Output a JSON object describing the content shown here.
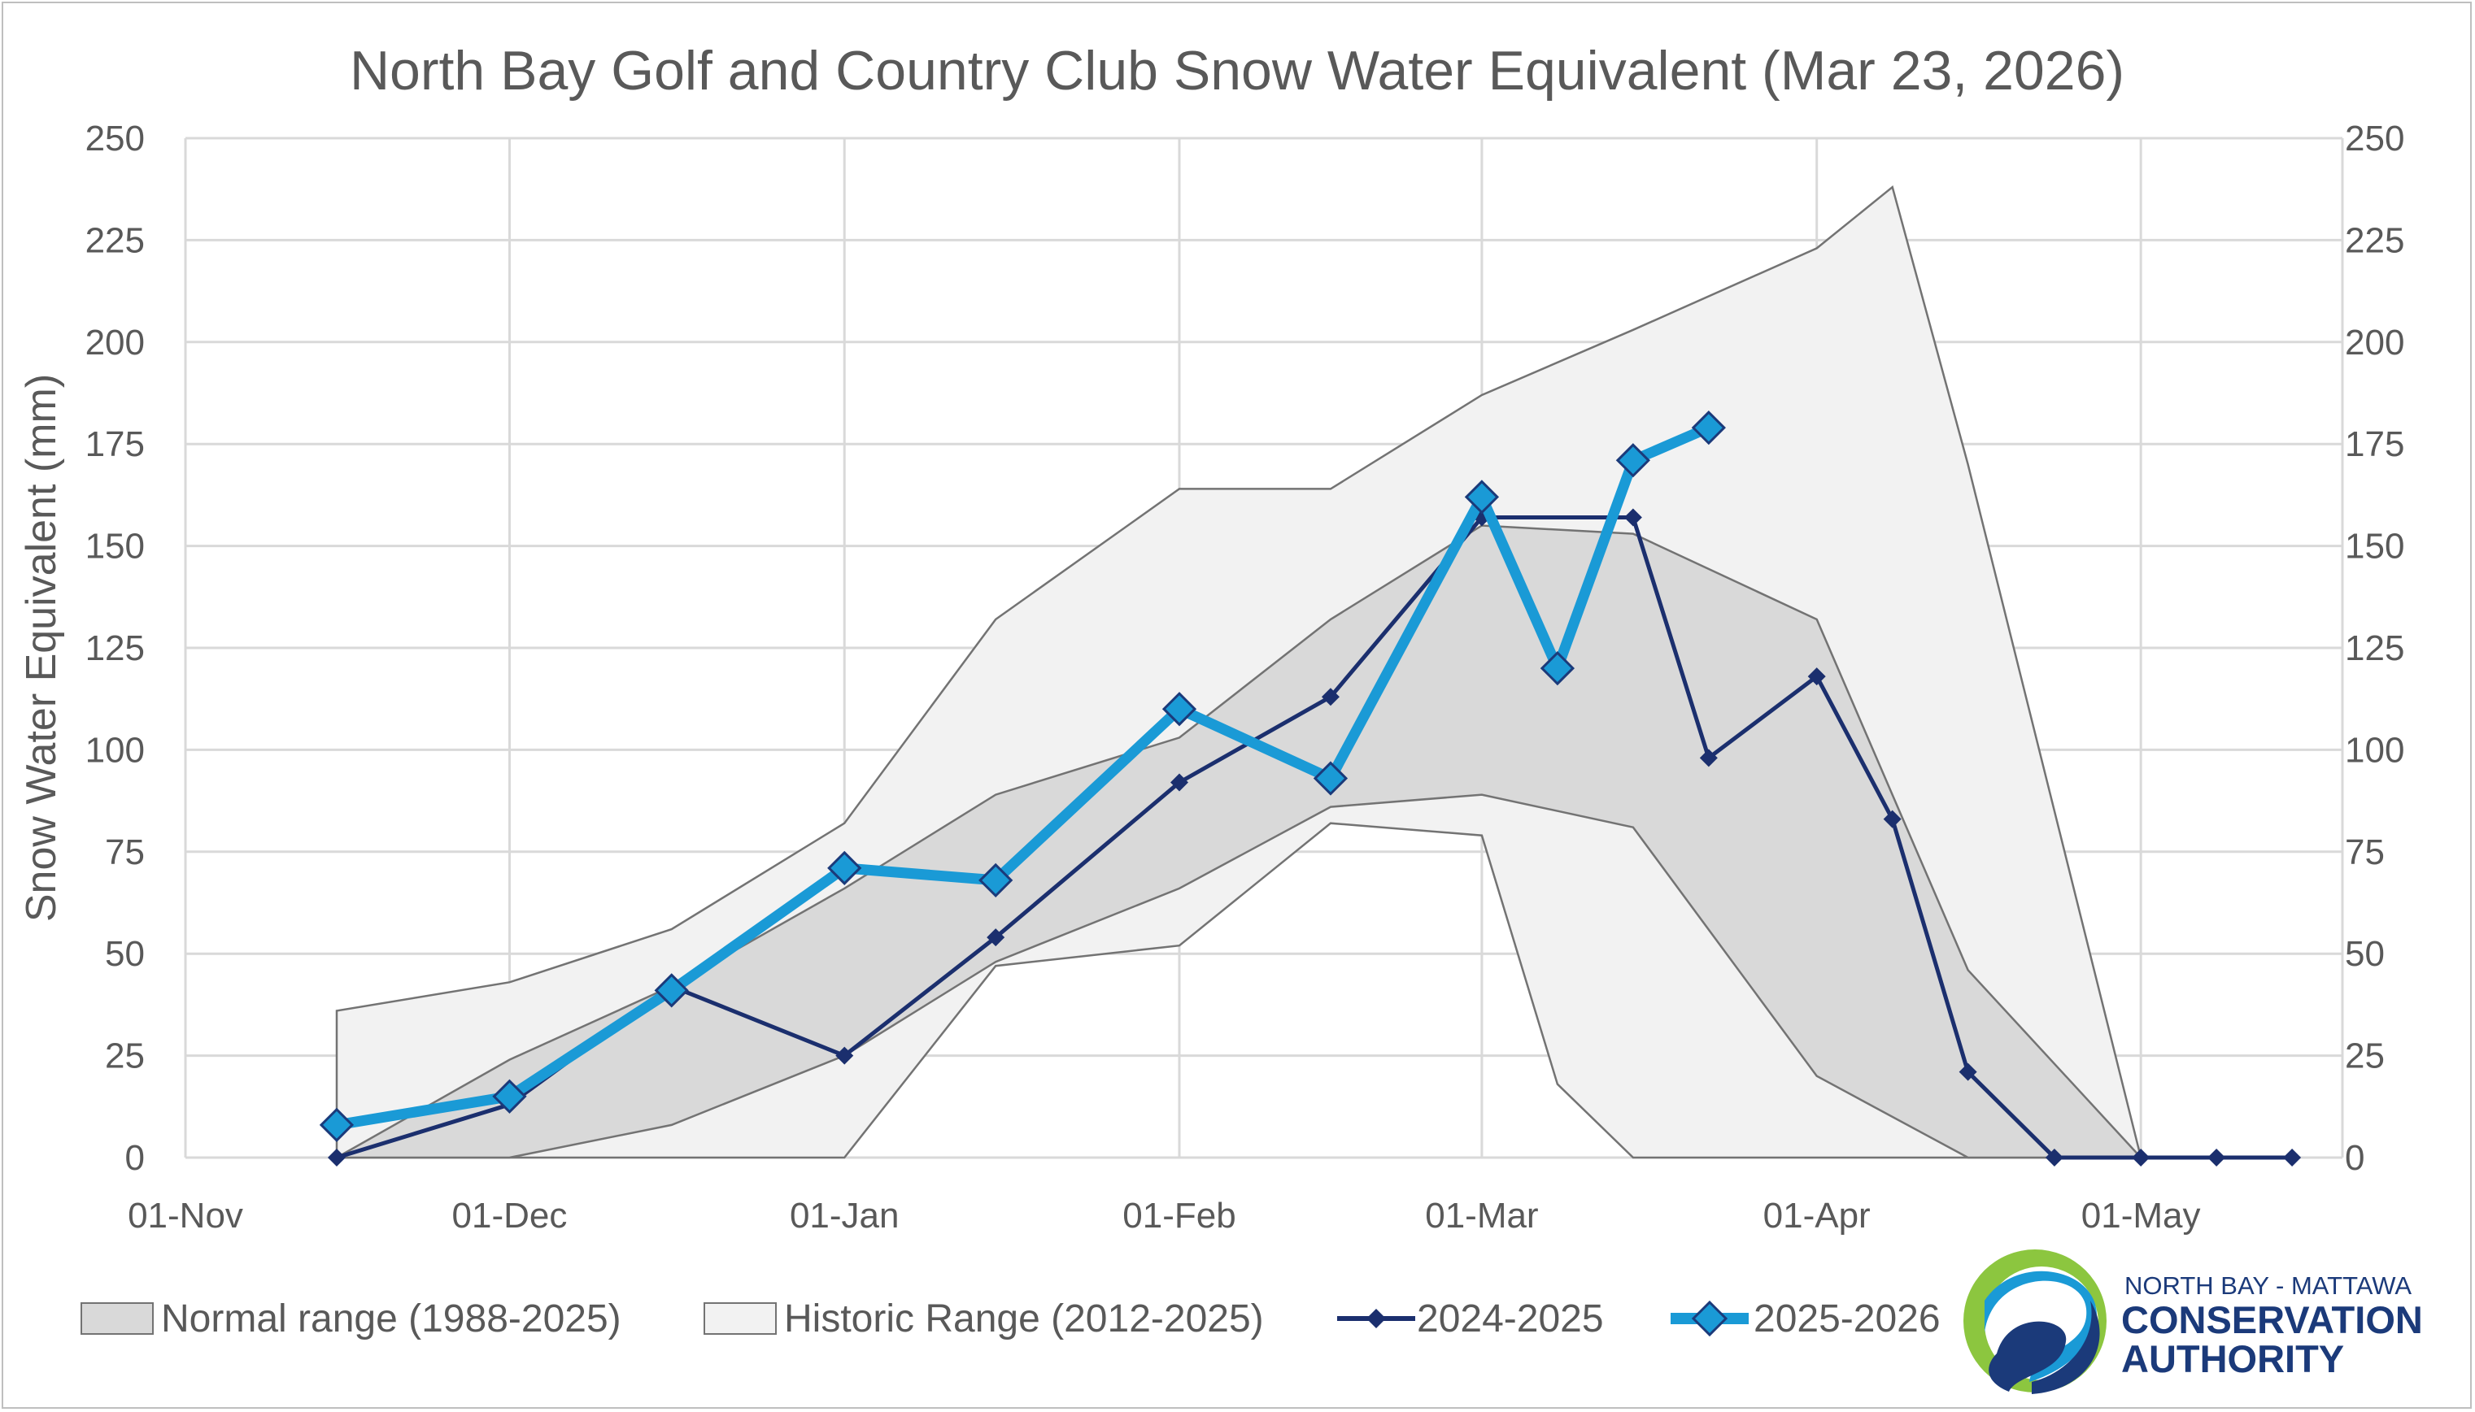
{
  "chart_data": {
    "type": "line",
    "title": "North Bay Golf and Country Club Snow Water Equivalent (Mar 23, 2026)",
    "ylabel": "Snow Water Equivalent (mm)",
    "xlabel": "",
    "ylim": [
      0,
      250
    ],
    "y_ticks": [
      "0",
      "25",
      "50",
      "75",
      "100",
      "125",
      "150",
      "175",
      "200",
      "225",
      "250"
    ],
    "secondary_y_axis": true,
    "x_ticks": [
      {
        "label": "01-Nov",
        "date": "2025-11-01"
      },
      {
        "label": "01-Dec",
        "date": "2025-12-01"
      },
      {
        "label": "01-Jan",
        "date": "2026-01-01"
      },
      {
        "label": "01-Feb",
        "date": "2026-02-01"
      },
      {
        "label": "01-Mar",
        "date": "2026-03-01"
      },
      {
        "label": "01-Apr",
        "date": "2026-04-01"
      },
      {
        "label": "01-May",
        "date": "2026-05-01"
      }
    ],
    "grid": true,
    "legend_position": "bottom",
    "bands": [
      {
        "name": "Normal range (1988-2025)",
        "fill": "#d9d9d9",
        "stroke": "#737373",
        "upper": [
          [
            "2025-11-15",
            0
          ],
          [
            "2025-12-01",
            24
          ],
          [
            "2025-12-16",
            42
          ],
          [
            "2026-01-01",
            66
          ],
          [
            "2026-01-15",
            89
          ],
          [
            "2026-02-01",
            103
          ],
          [
            "2026-02-15",
            132
          ],
          [
            "2026-03-01",
            155
          ],
          [
            "2026-03-15",
            153
          ],
          [
            "2026-04-01",
            132
          ],
          [
            "2026-04-15",
            46
          ],
          [
            "2026-05-01",
            0
          ]
        ],
        "lower": [
          [
            "2025-11-15",
            0
          ],
          [
            "2025-12-01",
            0
          ],
          [
            "2025-12-16",
            8
          ],
          [
            "2026-01-01",
            25
          ],
          [
            "2026-01-15",
            48
          ],
          [
            "2026-02-01",
            66
          ],
          [
            "2026-02-15",
            86
          ],
          [
            "2026-03-01",
            89
          ],
          [
            "2026-03-15",
            81
          ],
          [
            "2026-04-01",
            20
          ],
          [
            "2026-04-15",
            0
          ],
          [
            "2026-05-01",
            0
          ]
        ]
      },
      {
        "name": "Historic Range (2012-2025)",
        "fill": "#f2f2f2",
        "stroke": "#737373",
        "upper": [
          [
            "2025-11-15",
            0
          ],
          [
            "2025-11-15",
            36
          ],
          [
            "2025-12-01",
            43
          ],
          [
            "2025-12-16",
            56
          ],
          [
            "2026-01-01",
            82
          ],
          [
            "2026-01-15",
            132
          ],
          [
            "2026-02-01",
            164
          ],
          [
            "2026-02-15",
            164
          ],
          [
            "2026-03-01",
            187
          ],
          [
            "2026-03-15",
            203
          ],
          [
            "2026-04-01",
            223
          ],
          [
            "2026-04-08",
            238
          ],
          [
            "2026-04-15",
            170
          ],
          [
            "2026-05-01",
            0
          ]
        ],
        "lower": [
          [
            "2025-11-15",
            0
          ],
          [
            "2026-01-01",
            0
          ],
          [
            "2026-01-15",
            47
          ],
          [
            "2026-02-01",
            52
          ],
          [
            "2026-02-15",
            82
          ],
          [
            "2026-03-01",
            79
          ],
          [
            "2026-03-08",
            18
          ],
          [
            "2026-03-15",
            0
          ],
          [
            "2026-05-01",
            0
          ]
        ]
      }
    ],
    "series": [
      {
        "name": "2024-2025",
        "color": "#1b2f6e",
        "marker": "small-diamond",
        "points": [
          [
            "2025-11-15",
            0
          ],
          [
            "2025-12-01",
            13
          ],
          [
            "2025-12-16",
            42
          ],
          [
            "2026-01-01",
            25
          ],
          [
            "2026-01-15",
            54
          ],
          [
            "2026-02-01",
            92
          ],
          [
            "2026-02-15",
            113
          ],
          [
            "2026-03-01",
            157
          ],
          [
            "2026-03-15",
            157
          ],
          [
            "2026-03-22",
            98
          ],
          [
            "2026-04-01",
            118
          ],
          [
            "2026-04-08",
            83
          ],
          [
            "2026-04-15",
            21
          ],
          [
            "2026-04-23",
            0
          ],
          [
            "2026-05-01",
            0
          ],
          [
            "2026-05-08",
            0
          ],
          [
            "2026-05-15",
            0
          ]
        ]
      },
      {
        "name": "2025-2026",
        "color": "#1a9ad6",
        "marker": "large-diamond",
        "points": [
          [
            "2025-11-15",
            8
          ],
          [
            "2025-12-01",
            15
          ],
          [
            "2025-12-16",
            41
          ],
          [
            "2026-01-01",
            71
          ],
          [
            "2026-01-15",
            68
          ],
          [
            "2026-02-01",
            110
          ],
          [
            "2026-02-15",
            93
          ],
          [
            "2026-03-01",
            162
          ],
          [
            "2026-03-08",
            120
          ],
          [
            "2026-03-15",
            171
          ],
          [
            "2026-03-22",
            179
          ]
        ]
      }
    ]
  },
  "logo": {
    "line1": "NORTH BAY - MATTAWA",
    "line2": "CONSERVATION",
    "line3": "AUTHORITY",
    "colors": {
      "green": "#8cc63f",
      "blue": "#1a9ad6",
      "navy": "#1b3a7a"
    }
  }
}
